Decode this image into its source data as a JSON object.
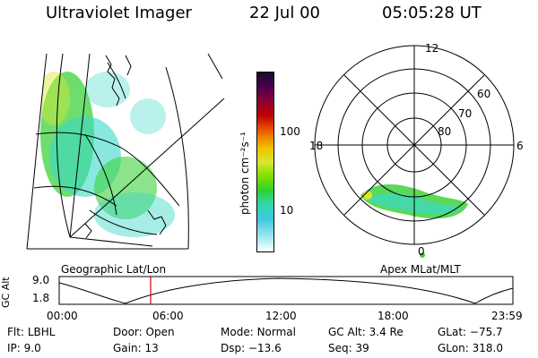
{
  "header": {
    "title": "Ultraviolet Imager",
    "date": "22 Jul 00",
    "time": "05:05:28 UT"
  },
  "geo_panel": {
    "caption": "Geographic Lat/Lon"
  },
  "colorbar": {
    "unit_label": "photon cm⁻²s⁻¹",
    "ticks": [
      "100",
      "10"
    ]
  },
  "polar_panel": {
    "caption": "Apex MLat/MLT",
    "mlt_labels": {
      "top": "12",
      "left": "18",
      "right": "6",
      "bottom": "0"
    },
    "lat_labels": [
      "60",
      "70",
      "80"
    ]
  },
  "altitude_strip": {
    "axis_label": "GC Alt",
    "y_ticks": [
      "9.0",
      "1.8"
    ],
    "x_ticks": [
      "00:00",
      "06:00",
      "12:00",
      "18:00",
      "23:59"
    ],
    "marker_color": "#d40000"
  },
  "info": {
    "row1": [
      {
        "label": "Flt:",
        "value": "LBHL"
      },
      {
        "label": "Door:",
        "value": "Open"
      },
      {
        "label": "Mode:",
        "value": "Normal"
      },
      {
        "label": "GC Alt:",
        "value": "3.4 Re"
      },
      {
        "label": "GLat:",
        "value": "−75.7"
      }
    ],
    "row2": [
      {
        "label": "IP:",
        "value": "9.0"
      },
      {
        "label": "Gain:",
        "value": "13"
      },
      {
        "label": "Dsp:",
        "value": "−13.6"
      },
      {
        "label": "Seq:",
        "value": "39"
      },
      {
        "label": "GLon:",
        "value": "318.0"
      }
    ]
  },
  "colors": {
    "aurora_green": "#3dd23d",
    "aurora_cyan": "#3ad8c8",
    "aurora_yellow": "#d8e830"
  }
}
